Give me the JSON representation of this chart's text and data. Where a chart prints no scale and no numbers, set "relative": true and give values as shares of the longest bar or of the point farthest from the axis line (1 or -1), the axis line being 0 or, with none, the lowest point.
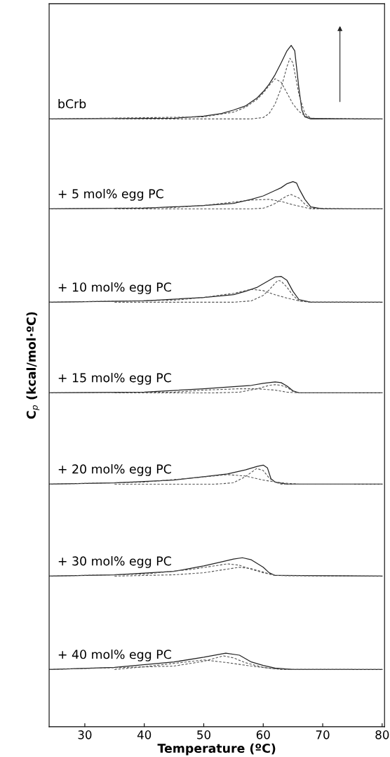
{
  "chart_data": {
    "type": "line",
    "relative": true,
    "xlabel": "Temperature (ºC)",
    "ylabel": "C$_{p}$ (kcal/mol·ºC)",
    "xlim": [
      24,
      80.4
    ],
    "xticks": [
      30,
      40,
      50,
      60,
      70,
      80
    ],
    "tick_labels": "x",
    "series": [
      {
        "name": "bCrb",
        "color": "#222222",
        "line_style": "solid",
        "x": [
          24,
          45,
          50,
          53,
          55,
          57,
          59,
          60,
          61,
          62,
          63,
          64,
          64.7,
          65.3,
          66,
          66.5,
          67,
          68,
          80
        ],
        "values": [
          0.892,
          0.893,
          0.896,
          0.9,
          0.905,
          0.911,
          0.923,
          0.932,
          0.943,
          0.957,
          0.974,
          0.992,
          1.0,
          0.992,
          0.937,
          0.905,
          0.895,
          0.892,
          0.892
        ]
      },
      {
        "color": "#555555",
        "line_style": "dashed",
        "x": [
          24,
          50,
          55,
          57,
          59,
          60,
          61,
          62,
          63,
          64,
          65,
          66,
          67,
          68,
          80
        ],
        "values": [
          0.892,
          0.895,
          0.902,
          0.909,
          0.921,
          0.93,
          0.941,
          0.951,
          0.946,
          0.93,
          0.914,
          0.903,
          0.897,
          0.893,
          0.892
        ]
      },
      {
        "color": "#555555",
        "line_style": "dashed",
        "x": [
          35,
          58,
          60,
          61,
          62,
          63,
          64,
          64.5,
          65,
          66,
          67,
          68,
          75
        ],
        "values": [
          0.892,
          0.892,
          0.894,
          0.9,
          0.914,
          0.937,
          0.969,
          0.981,
          0.974,
          0.928,
          0.9,
          0.893,
          0.892
        ]
      },
      {
        "name": "+ 5 mol% egg PC",
        "color": "#222222",
        "line_style": "solid",
        "x": [
          24,
          40,
          50,
          55,
          58,
          60,
          62,
          63,
          64,
          65,
          65.6,
          66,
          67,
          68,
          70,
          80
        ],
        "values": [
          0.76,
          0.761,
          0.765,
          0.768,
          0.774,
          0.779,
          0.787,
          0.791,
          0.797,
          0.8,
          0.798,
          0.79,
          0.774,
          0.763,
          0.76,
          0.76
        ]
      },
      {
        "color": "#555555",
        "line_style": "dashed",
        "x": [
          24,
          45,
          50,
          55,
          58,
          61,
          63,
          65,
          67,
          68,
          80
        ],
        "values": [
          0.76,
          0.762,
          0.765,
          0.77,
          0.773,
          0.774,
          0.771,
          0.766,
          0.762,
          0.76,
          0.76
        ]
      },
      {
        "color": "#555555",
        "line_style": "dashed",
        "x": [
          35,
          58,
          60,
          61,
          62,
          63,
          64,
          64.7,
          66,
          67,
          68,
          75
        ],
        "values": [
          0.76,
          0.76,
          0.761,
          0.764,
          0.768,
          0.774,
          0.779,
          0.781,
          0.776,
          0.767,
          0.761,
          0.76
        ]
      },
      {
        "name": "+ 10 mol% egg PC",
        "color": "#222222",
        "line_style": "solid",
        "x": [
          24,
          40,
          50,
          55,
          57,
          59,
          61,
          62,
          63,
          64,
          65,
          66,
          68,
          80
        ],
        "values": [
          0.623,
          0.625,
          0.63,
          0.634,
          0.639,
          0.645,
          0.655,
          0.66,
          0.661,
          0.655,
          0.639,
          0.627,
          0.623,
          0.623
        ]
      },
      {
        "color": "#555555",
        "line_style": "dashed",
        "x": [
          24,
          45,
          50,
          55,
          58,
          60,
          62,
          64,
          66,
          68,
          80
        ],
        "values": [
          0.623,
          0.626,
          0.63,
          0.636,
          0.642,
          0.64,
          0.634,
          0.629,
          0.625,
          0.623,
          0.623
        ]
      },
      {
        "color": "#555555",
        "line_style": "dashed",
        "x": [
          35,
          55,
          58,
          60,
          61,
          62,
          62.5,
          63,
          64,
          65,
          66,
          68,
          75
        ],
        "values": [
          0.623,
          0.623,
          0.625,
          0.633,
          0.641,
          0.651,
          0.655,
          0.654,
          0.645,
          0.633,
          0.625,
          0.623,
          0.623
        ]
      },
      {
        "name": "+ 15 mol% egg PC",
        "color": "#222222",
        "line_style": "solid",
        "x": [
          24,
          40,
          50,
          55,
          58,
          60,
          62,
          63,
          64,
          65,
          66,
          80
        ],
        "values": [
          0.49,
          0.491,
          0.496,
          0.499,
          0.501,
          0.504,
          0.506,
          0.505,
          0.5,
          0.493,
          0.49,
          0.49
        ]
      },
      {
        "color": "#555555",
        "line_style": "dashed",
        "x": [
          24,
          45,
          50,
          56,
          59,
          62,
          64,
          66,
          80
        ],
        "values": [
          0.49,
          0.491,
          0.494,
          0.496,
          0.496,
          0.494,
          0.491,
          0.49,
          0.49
        ]
      },
      {
        "color": "#555555",
        "line_style": "dashed",
        "x": [
          35,
          52,
          56,
          59,
          61,
          62,
          63,
          64,
          65,
          66,
          75
        ],
        "values": [
          0.49,
          0.49,
          0.491,
          0.496,
          0.501,
          0.502,
          0.501,
          0.498,
          0.492,
          0.49,
          0.49
        ]
      },
      {
        "name": "+ 20 mol% egg PC",
        "color": "#222222",
        "line_style": "solid",
        "x": [
          24,
          35,
          45,
          50,
          54,
          57,
          59,
          60,
          60.7,
          61.3,
          62,
          64,
          80
        ],
        "values": [
          0.356,
          0.358,
          0.362,
          0.367,
          0.371,
          0.377,
          0.382,
          0.384,
          0.38,
          0.364,
          0.359,
          0.356,
          0.356
        ]
      },
      {
        "color": "#555555",
        "line_style": "dashed",
        "x": [
          24,
          40,
          48,
          54,
          57,
          60,
          63,
          66,
          80
        ],
        "values": [
          0.356,
          0.359,
          0.365,
          0.37,
          0.368,
          0.362,
          0.358,
          0.356,
          0.356
        ]
      },
      {
        "color": "#555555",
        "line_style": "dashed",
        "x": [
          35,
          52,
          55,
          57,
          58.9,
          60,
          61,
          62,
          63,
          75
        ],
        "values": [
          0.356,
          0.356,
          0.358,
          0.367,
          0.379,
          0.376,
          0.365,
          0.359,
          0.356,
          0.356
        ]
      },
      {
        "name": "+ 30 mol% egg PC",
        "color": "#222222",
        "line_style": "solid",
        "x": [
          24,
          35,
          45,
          50,
          53,
          55,
          56.5,
          58,
          60,
          61,
          62,
          80
        ],
        "values": [
          0.221,
          0.223,
          0.228,
          0.236,
          0.242,
          0.246,
          0.248,
          0.245,
          0.234,
          0.226,
          0.222,
          0.221
        ]
      },
      {
        "color": "#555555",
        "line_style": "dashed",
        "x": [
          24,
          40,
          48,
          54,
          56,
          58,
          60,
          62,
          80
        ],
        "values": [
          0.221,
          0.224,
          0.231,
          0.239,
          0.237,
          0.231,
          0.226,
          0.222,
          0.221
        ]
      },
      {
        "color": "#555555",
        "line_style": "dashed",
        "x": [
          35,
          45,
          50,
          56,
          58,
          60,
          62,
          75
        ],
        "values": [
          0.221,
          0.223,
          0.226,
          0.234,
          0.232,
          0.227,
          0.222,
          0.221
        ]
      },
      {
        "name": "+ 40 mol% egg PC",
        "color": "#222222",
        "line_style": "solid",
        "x": [
          24,
          35,
          45,
          50,
          53.7,
          56,
          58,
          60,
          62,
          65,
          80
        ],
        "values": [
          0.084,
          0.087,
          0.095,
          0.102,
          0.108,
          0.105,
          0.095,
          0.09,
          0.086,
          0.084,
          0.084
        ]
      },
      {
        "color": "#555555",
        "line_style": "dashed",
        "x": [
          24,
          45,
          50,
          53.3,
          55,
          57,
          60,
          63,
          80
        ],
        "values": [
          0.084,
          0.089,
          0.096,
          0.104,
          0.101,
          0.094,
          0.087,
          0.084,
          0.084
        ]
      },
      {
        "color": "#555555",
        "line_style": "dashed",
        "x": [
          35,
          40,
          47,
          50,
          54,
          58,
          62,
          65,
          75
        ],
        "values": [
          0.084,
          0.088,
          0.095,
          0.098,
          0.094,
          0.089,
          0.085,
          0.084,
          0.084
        ]
      }
    ]
  }
}
